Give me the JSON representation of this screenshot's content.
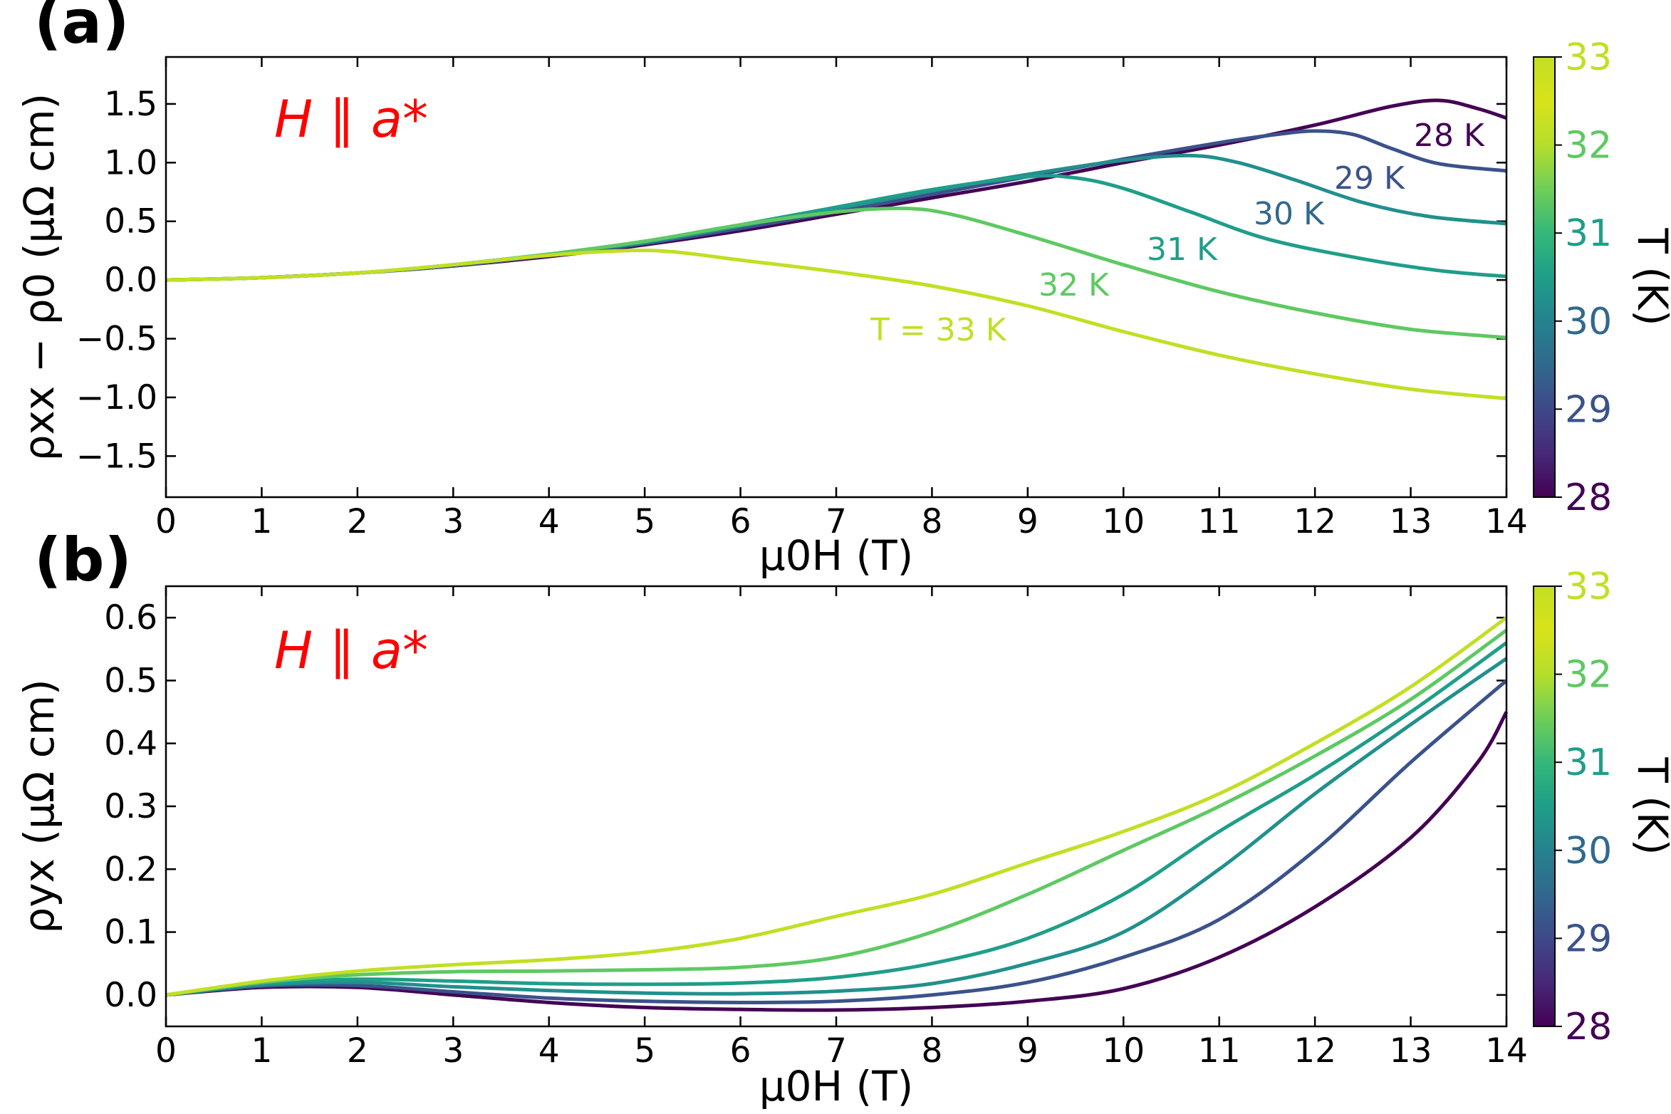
{
  "chart_data": [
    {
      "panel_label": "(a)",
      "type": "line",
      "annotation": "H ∥ a*",
      "xlabel": "μ0H (T)",
      "ylabel": "ρxx − ρ0 (μΩ cm)",
      "xlim": [
        0,
        14
      ],
      "ylim": [
        -1.85,
        1.9
      ],
      "xticks": [
        "0",
        "1",
        "2",
        "3",
        "4",
        "5",
        "6",
        "7",
        "8",
        "9",
        "10",
        "11",
        "12",
        "13",
        "14"
      ],
      "yticks": [
        "−1.5",
        "−1.0",
        "−0.5",
        "0.0",
        "0.5",
        "1.0",
        "1.5"
      ],
      "colorbar": {
        "label": "T (K)",
        "range": [
          28,
          33
        ],
        "ticks": [
          "28",
          "29",
          "30",
          "31",
          "32",
          "33"
        ]
      },
      "curve_labels": [
        "28 K",
        "29 K",
        "30 K",
        "31 K",
        "32 K",
        "T = 33 K"
      ],
      "series": [
        {
          "temperature": 28,
          "color": "#440154",
          "points": [
            [
              0,
              0
            ],
            [
              1,
              0.02
            ],
            [
              2,
              0.06
            ],
            [
              3,
              0.12
            ],
            [
              4,
              0.2
            ],
            [
              5,
              0.3
            ],
            [
              6,
              0.42
            ],
            [
              7,
              0.56
            ],
            [
              8,
              0.7
            ],
            [
              9,
              0.84
            ],
            [
              10,
              1.0
            ],
            [
              11,
              1.15
            ],
            [
              12,
              1.32
            ],
            [
              12.8,
              1.48
            ],
            [
              13.3,
              1.53
            ],
            [
              13.7,
              1.46
            ],
            [
              14,
              1.38
            ]
          ]
        },
        {
          "temperature": 29,
          "color": "#3b528b",
          "points": [
            [
              0,
              0
            ],
            [
              1,
              0.02
            ],
            [
              2,
              0.06
            ],
            [
              3,
              0.12
            ],
            [
              4,
              0.21
            ],
            [
              5,
              0.31
            ],
            [
              6,
              0.44
            ],
            [
              7,
              0.58
            ],
            [
              8,
              0.73
            ],
            [
              9,
              0.88
            ],
            [
              10,
              1.03
            ],
            [
              11,
              1.17
            ],
            [
              11.6,
              1.24
            ],
            [
              12,
              1.27
            ],
            [
              12.4,
              1.24
            ],
            [
              12.8,
              1.12
            ],
            [
              13.3,
              0.99
            ],
            [
              14,
              0.93
            ]
          ]
        },
        {
          "temperature": 30,
          "color": "#21908d",
          "points": [
            [
              0,
              0
            ],
            [
              1,
              0.02
            ],
            [
              2,
              0.06
            ],
            [
              3,
              0.13
            ],
            [
              4,
              0.22
            ],
            [
              5,
              0.32
            ],
            [
              6,
              0.46
            ],
            [
              7,
              0.61
            ],
            [
              8,
              0.76
            ],
            [
              9,
              0.9
            ],
            [
              10,
              1.02
            ],
            [
              10.7,
              1.06
            ],
            [
              11.2,
              1.0
            ],
            [
              11.8,
              0.85
            ],
            [
              12.5,
              0.66
            ],
            [
              13.2,
              0.54
            ],
            [
              14,
              0.48
            ]
          ]
        },
        {
          "temperature": 31,
          "color": "#1f9e89",
          "points": [
            [
              0,
              0
            ],
            [
              1,
              0.02
            ],
            [
              2,
              0.06
            ],
            [
              3,
              0.13
            ],
            [
              4,
              0.22
            ],
            [
              5,
              0.33
            ],
            [
              6,
              0.47
            ],
            [
              7,
              0.62
            ],
            [
              8,
              0.77
            ],
            [
              9,
              0.88
            ],
            [
              9.5,
              0.87
            ],
            [
              10,
              0.78
            ],
            [
              10.7,
              0.58
            ],
            [
              11.5,
              0.35
            ],
            [
              12.5,
              0.18
            ],
            [
              13.3,
              0.08
            ],
            [
              14,
              0.03
            ]
          ]
        },
        {
          "temperature": 32,
          "color": "#5ec962",
          "points": [
            [
              0,
              0
            ],
            [
              1,
              0.02
            ],
            [
              2,
              0.06
            ],
            [
              3,
              0.13
            ],
            [
              4,
              0.22
            ],
            [
              5,
              0.33
            ],
            [
              6,
              0.47
            ],
            [
              7,
              0.58
            ],
            [
              7.7,
              0.61
            ],
            [
              8.2,
              0.56
            ],
            [
              9,
              0.38
            ],
            [
              10,
              0.13
            ],
            [
              11,
              -0.1
            ],
            [
              12,
              -0.28
            ],
            [
              13,
              -0.42
            ],
            [
              14,
              -0.49
            ]
          ]
        },
        {
          "temperature": 33,
          "color": "#c2df23",
          "points": [
            [
              0,
              0
            ],
            [
              1,
              0.02
            ],
            [
              2,
              0.06
            ],
            [
              3,
              0.13
            ],
            [
              4,
              0.21
            ],
            [
              4.8,
              0.25
            ],
            [
              5.3,
              0.24
            ],
            [
              6,
              0.17
            ],
            [
              7,
              0.07
            ],
            [
              8,
              -0.05
            ],
            [
              9,
              -0.22
            ],
            [
              10,
              -0.44
            ],
            [
              11,
              -0.64
            ],
            [
              12,
              -0.8
            ],
            [
              13,
              -0.93
            ],
            [
              14,
              -1.01
            ]
          ]
        }
      ]
    },
    {
      "panel_label": "(b)",
      "type": "line",
      "annotation": "H ∥ a*",
      "xlabel": "μ0H (T)",
      "ylabel": "ρyx (μΩ cm)",
      "xlim": [
        0,
        14
      ],
      "ylim": [
        -0.05,
        0.65
      ],
      "xticks": [
        "0",
        "1",
        "2",
        "3",
        "4",
        "5",
        "6",
        "7",
        "8",
        "9",
        "10",
        "11",
        "12",
        "13",
        "14"
      ],
      "yticks": [
        "0.0",
        "0.1",
        "0.2",
        "0.3",
        "0.4",
        "0.5",
        "0.6"
      ],
      "colorbar": {
        "label": "T (K)",
        "range": [
          28,
          33
        ],
        "ticks": [
          "28",
          "29",
          "30",
          "31",
          "32",
          "33"
        ]
      },
      "series": [
        {
          "temperature": 28,
          "color": "#440154",
          "points": [
            [
              0,
              0
            ],
            [
              1,
              0.012
            ],
            [
              2,
              0.012
            ],
            [
              3,
              0.0
            ],
            [
              4,
              -0.012
            ],
            [
              5,
              -0.02
            ],
            [
              6,
              -0.023
            ],
            [
              7,
              -0.024
            ],
            [
              8,
              -0.02
            ],
            [
              9,
              -0.01
            ],
            [
              10,
              0.01
            ],
            [
              11,
              0.06
            ],
            [
              12,
              0.14
            ],
            [
              13,
              0.25
            ],
            [
              13.7,
              0.37
            ],
            [
              14,
              0.45
            ]
          ]
        },
        {
          "temperature": 29,
          "color": "#3b528b",
          "points": [
            [
              0,
              0
            ],
            [
              1,
              0.014
            ],
            [
              2,
              0.015
            ],
            [
              3,
              0.005
            ],
            [
              4,
              -0.005
            ],
            [
              5,
              -0.01
            ],
            [
              6,
              -0.012
            ],
            [
              7,
              -0.01
            ],
            [
              8,
              0.0
            ],
            [
              9,
              0.02
            ],
            [
              10,
              0.06
            ],
            [
              11,
              0.12
            ],
            [
              12,
              0.23
            ],
            [
              13,
              0.37
            ],
            [
              14,
              0.5
            ]
          ]
        },
        {
          "temperature": 30,
          "color": "#21908d",
          "points": [
            [
              0,
              0
            ],
            [
              1,
              0.016
            ],
            [
              2,
              0.02
            ],
            [
              3,
              0.013
            ],
            [
              4,
              0.007
            ],
            [
              5,
              0.003
            ],
            [
              6,
              0.002
            ],
            [
              7,
              0.006
            ],
            [
              8,
              0.018
            ],
            [
              9,
              0.05
            ],
            [
              10,
              0.1
            ],
            [
              11,
              0.2
            ],
            [
              12,
              0.32
            ],
            [
              13,
              0.43
            ],
            [
              14,
              0.535
            ]
          ]
        },
        {
          "temperature": 31,
          "color": "#1f9e89",
          "points": [
            [
              0,
              0
            ],
            [
              1,
              0.018
            ],
            [
              2,
              0.025
            ],
            [
              3,
              0.022
            ],
            [
              4,
              0.018
            ],
            [
              5,
              0.017
            ],
            [
              6,
              0.019
            ],
            [
              7,
              0.028
            ],
            [
              8,
              0.05
            ],
            [
              9,
              0.09
            ],
            [
              10,
              0.16
            ],
            [
              11,
              0.26
            ],
            [
              12,
              0.35
            ],
            [
              13,
              0.45
            ],
            [
              14,
              0.56
            ]
          ]
        },
        {
          "temperature": 32,
          "color": "#5ec962",
          "points": [
            [
              0,
              0
            ],
            [
              1,
              0.02
            ],
            [
              2,
              0.032
            ],
            [
              3,
              0.037
            ],
            [
              4,
              0.038
            ],
            [
              5,
              0.04
            ],
            [
              6,
              0.044
            ],
            [
              7,
              0.06
            ],
            [
              8,
              0.1
            ],
            [
              9,
              0.16
            ],
            [
              10,
              0.23
            ],
            [
              11,
              0.3
            ],
            [
              12,
              0.38
            ],
            [
              13,
              0.47
            ],
            [
              14,
              0.58
            ]
          ]
        },
        {
          "temperature": 33,
          "color": "#c2df23",
          "points": [
            [
              0,
              0
            ],
            [
              1,
              0.022
            ],
            [
              2,
              0.038
            ],
            [
              3,
              0.048
            ],
            [
              4,
              0.056
            ],
            [
              5,
              0.068
            ],
            [
              6,
              0.09
            ],
            [
              7,
              0.125
            ],
            [
              8,
              0.16
            ],
            [
              9,
              0.21
            ],
            [
              10,
              0.26
            ],
            [
              11,
              0.32
            ],
            [
              12,
              0.4
            ],
            [
              13,
              0.49
            ],
            [
              14,
              0.6
            ]
          ]
        }
      ]
    }
  ]
}
